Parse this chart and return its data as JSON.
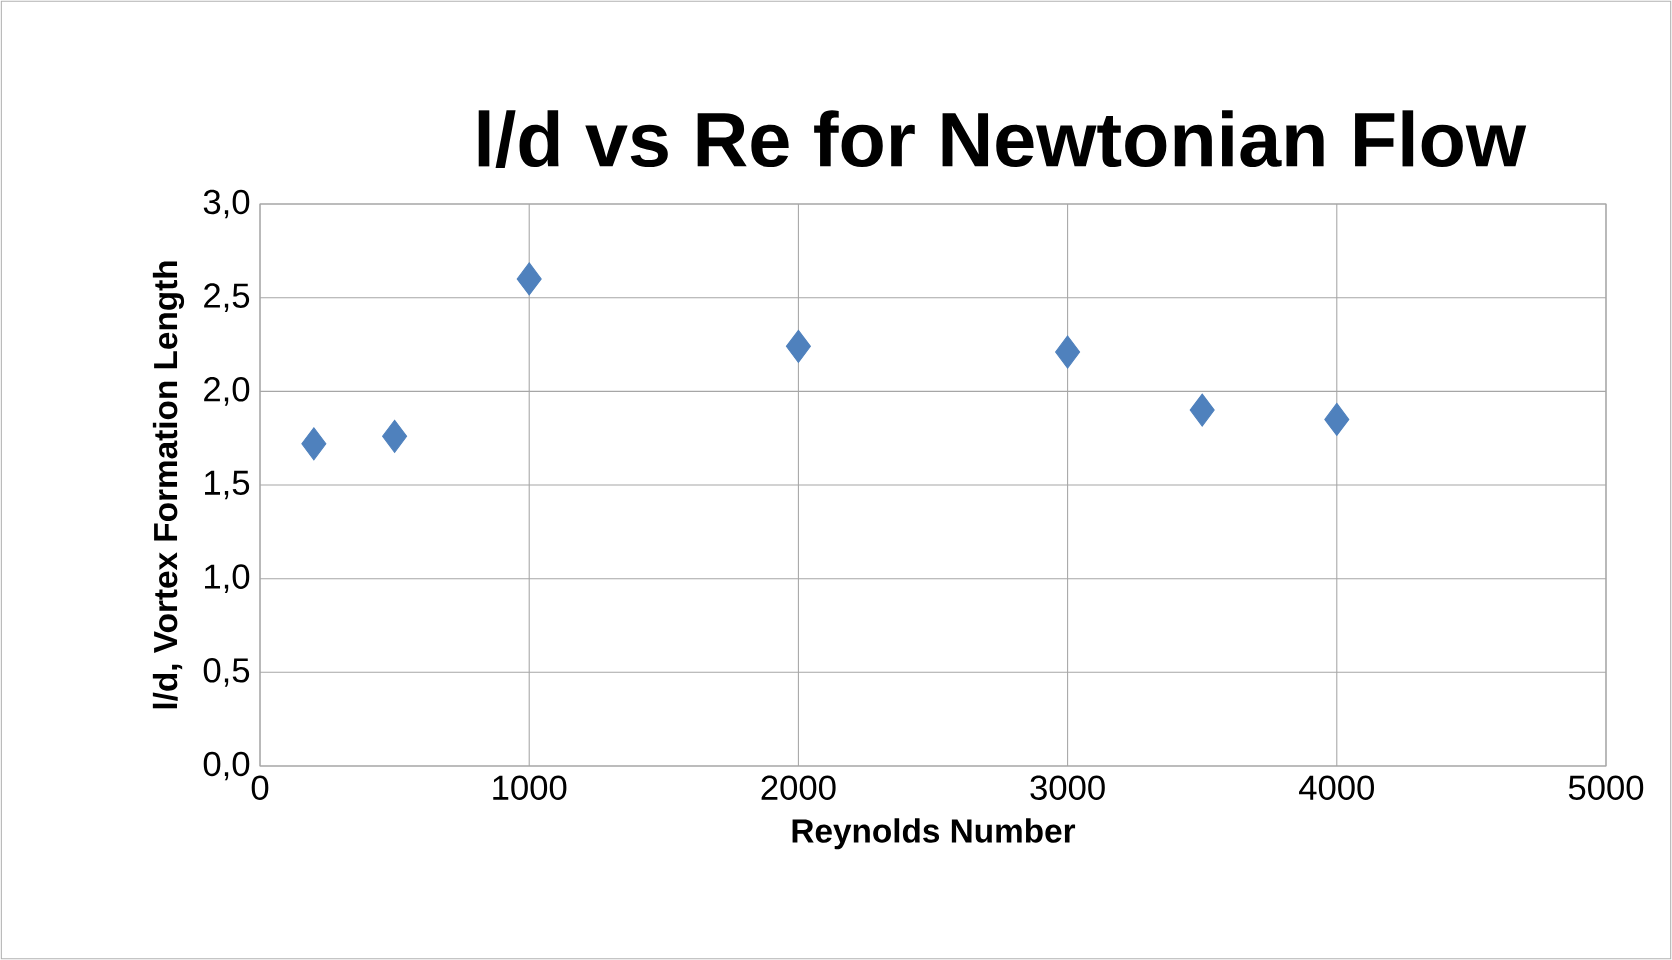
{
  "chart_data": {
    "type": "scatter",
    "title": "l/d vs Re for Newtonian Flow",
    "xlabel": "Reynolds Number",
    "ylabel": "l/d,  Vortex Formation Length",
    "x": [
      200,
      500,
      1000,
      2000,
      3000,
      3500,
      4000
    ],
    "series": [
      {
        "color": "#4f81bd",
        "values": [
          1.72,
          1.76,
          2.6,
          2.24,
          2.21,
          1.9,
          1.85
        ]
      }
    ],
    "xlim": [
      0,
      5000
    ],
    "xticks": [
      0,
      1000,
      2000,
      3000,
      4000,
      5000
    ],
    "ylim": [
      0,
      3
    ],
    "yticks": [
      {
        "value": 0,
        "label": "0,0"
      },
      {
        "value": 0.5,
        "label": "0,5"
      },
      {
        "value": 1,
        "label": "1,0"
      },
      {
        "value": 1.5,
        "label": "1,5"
      },
      {
        "value": 2,
        "label": "2,0"
      },
      {
        "value": 2.5,
        "label": "2,5"
      },
      {
        "value": 3,
        "label": "3,0"
      }
    ],
    "grid": true,
    "marker": "diamond"
  }
}
